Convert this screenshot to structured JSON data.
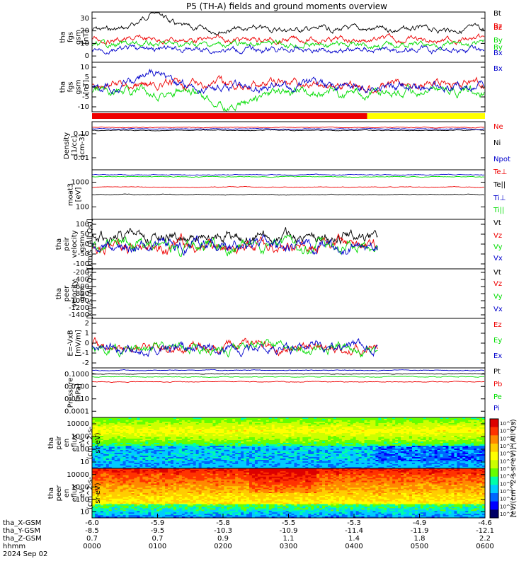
{
  "title": "P5 (TH-A) fields and ground moments overview",
  "colors": {
    "black": "#000000",
    "red": "#ee0000",
    "green": "#00dd00",
    "blue": "#0000cc",
    "yellow": "#ffff00"
  },
  "chart_data": [
    {
      "type": "line",
      "name": "fgs",
      "ylabel": [
        "tha",
        "fgs",
        "gsm",
        "[nT]"
      ],
      "yticks": [
        "30",
        "20",
        "10",
        "0"
      ],
      "ylim": [
        -2,
        34
      ],
      "series": [
        {
          "name": "Bt",
          "color": "#000000",
          "base": 12
        },
        {
          "name": "Bz",
          "color": "#ee0000",
          "base": 9
        },
        {
          "name": "By",
          "color": "#00dd00",
          "base": 6
        },
        {
          "name": "Bx",
          "color": "#0000cc",
          "base": 5
        }
      ]
    },
    {
      "type": "line",
      "name": "fgs-gsm",
      "ylabel": [
        "tha",
        "fgs",
        "gsm",
        "[nT]"
      ],
      "yticks": [
        "10",
        "5",
        "0",
        "-5",
        "-10"
      ],
      "ylim": [
        -16,
        14
      ],
      "series": [
        {
          "name": "Bz",
          "color": "#ee0000"
        },
        {
          "name": "By",
          "color": "#00dd00"
        },
        {
          "name": "Bx",
          "color": "#0000cc"
        }
      ]
    },
    {
      "type": "line",
      "name": "density",
      "ylabel": [
        "Density",
        "[1/cc]",
        "[cm-3]"
      ],
      "yticks": [
        "0.10",
        "0.01"
      ],
      "log": true,
      "series": [
        {
          "name": "Ne",
          "color": "#ee0000"
        },
        {
          "name": "Ni",
          "color": "#000000"
        },
        {
          "name": "Npot",
          "color": "#0000cc"
        }
      ]
    },
    {
      "type": "line",
      "name": "temperature",
      "ylabel": [
        "moat3",
        "[eV]"
      ],
      "yticks": [
        "1000",
        "100"
      ],
      "log": true,
      "series": [
        {
          "name": "Te⊥",
          "color": "#ee0000"
        },
        {
          "name": "Te||",
          "color": "#000000"
        },
        {
          "name": "Ti⊥",
          "color": "#0000cc"
        },
        {
          "name": "Ti||",
          "color": "#00dd00"
        }
      ]
    },
    {
      "type": "line",
      "name": "peir-velocity",
      "ylabel": [
        "tha",
        "peir",
        "velocity",
        "gsm",
        "[km/s (All Qs)]"
      ],
      "yticks": [
        "100",
        "50",
        "0",
        "-50",
        "-100"
      ],
      "ylim": [
        -120,
        140
      ],
      "series": [
        {
          "name": "Vt",
          "color": "#000000"
        },
        {
          "name": "Vz",
          "color": "#ee0000"
        },
        {
          "name": "Vy",
          "color": "#00dd00"
        },
        {
          "name": "Vx",
          "color": "#0000cc"
        }
      ]
    },
    {
      "type": "line",
      "name": "peer-velocity",
      "ylabel": [
        "tha",
        "peer",
        "velocity",
        "gsm",
        "[km/s (All Qs)]"
      ],
      "yticks": [
        "-200",
        "-400",
        "-600",
        "-800",
        "-1000",
        "-1200",
        "-1400"
      ],
      "ylim": [
        -1450,
        -150
      ],
      "series": [
        {
          "name": "Vt",
          "color": "#000000"
        },
        {
          "name": "Vz",
          "color": "#ee0000"
        },
        {
          "name": "Vy",
          "color": "#00dd00"
        },
        {
          "name": "Vx",
          "color": "#0000cc"
        }
      ]
    },
    {
      "type": "line",
      "name": "efield",
      "ylabel": [
        "E=-VxB",
        "[mV/m]"
      ],
      "yticks": [
        "2",
        "1",
        "0",
        "-1",
        "-2"
      ],
      "ylim": [
        -2.5,
        2.5
      ],
      "series": [
        {
          "name": "Ez",
          "color": "#ee0000"
        },
        {
          "name": "Ey",
          "color": "#00dd00"
        },
        {
          "name": "Ex",
          "color": "#0000cc"
        }
      ]
    },
    {
      "type": "line",
      "name": "pressure",
      "ylabel": [
        "Pressure",
        "[nPa]"
      ],
      "yticks": [
        "0.1000",
        "0.0100",
        "0.0010",
        "0.0001"
      ],
      "log": true,
      "series": [
        {
          "name": "Pt",
          "color": "#000000"
        },
        {
          "name": "Pb",
          "color": "#ee0000"
        },
        {
          "name": "Pe",
          "color": "#00dd00"
        },
        {
          "name": "Pi",
          "color": "#0000cc"
        }
      ]
    },
    {
      "type": "heatmap",
      "name": "peir-spectrogram",
      "ylabel": [
        "tha",
        "peir",
        "en",
        "eflux",
        "eV",
        "(cm^2-s-",
        "sr-eV)"
      ],
      "yticks": [
        "10000",
        "1000",
        "100",
        "10"
      ]
    },
    {
      "type": "heatmap",
      "name": "peer-spectrogram",
      "ylabel": [
        "tha",
        "peer",
        "en",
        "eflux",
        "eV",
        "(cm^2-s-",
        "sr-eV)"
      ],
      "yticks": [
        "10000",
        "1000",
        "100",
        "10"
      ]
    }
  ],
  "colorbar": {
    "label": "[eV/(cm^2-s-sr-eV)] (All Qs)",
    "ticks": [
      "10^7",
      "10^6",
      "10^5",
      "10^4",
      "10^3",
      "10^2",
      "10^1",
      "10^0",
      "10^6",
      "10^5",
      "10^4",
      "10^3",
      "10^2"
    ]
  },
  "xaxis": {
    "rows": [
      {
        "label": "tha_X-GSM",
        "values": [
          "-6.0",
          "-5.9",
          "-5.8",
          "-5.5",
          "-5.3",
          "-4.9",
          "-4.6"
        ]
      },
      {
        "label": "tha_Y-GSM",
        "values": [
          "-8.5",
          "-9.5",
          "-10.3",
          "-10.9",
          "-11.4",
          "-11.9",
          "-12.1"
        ]
      },
      {
        "label": "tha_Z-GSM",
        "values": [
          "0.7",
          "0.7",
          "0.9",
          "1.1",
          "1.4",
          "1.8",
          "2.2"
        ]
      },
      {
        "label": "hhmm",
        "values": [
          "0000",
          "0100",
          "0200",
          "0300",
          "0400",
          "0500",
          "0600"
        ]
      }
    ],
    "date": "2024 Sep 02"
  },
  "mode_bar": {
    "segments": [
      {
        "color": "#ee0000",
        "from": 0,
        "to": 0.7
      },
      {
        "color": "#ffff00",
        "from": 0.7,
        "to": 1.0
      }
    ]
  }
}
